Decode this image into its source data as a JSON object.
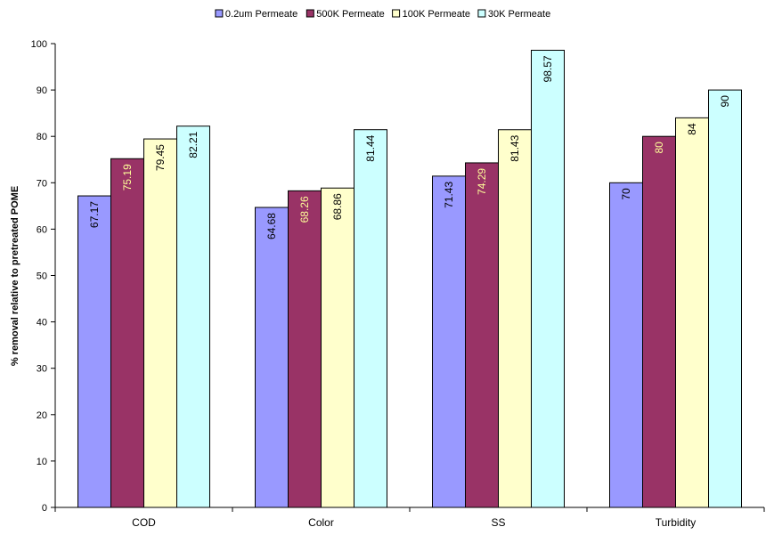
{
  "chart_data": {
    "type": "bar",
    "title": "",
    "xlabel": "",
    "ylabel": "% removal relative to pretreated POME",
    "categories": [
      "COD",
      "Color",
      "SS",
      "Turbidity"
    ],
    "ylim": [
      0,
      100
    ],
    "yticks": [
      0,
      10,
      20,
      30,
      40,
      50,
      60,
      70,
      80,
      90,
      100
    ],
    "grid": false,
    "legend_position": "top",
    "series": [
      {
        "name": "0.2um Permeate",
        "color": "#9999FF",
        "values": [
          67.17,
          64.68,
          71.43,
          70
        ],
        "labels": [
          "67.17",
          "64.68",
          "71.43",
          "70"
        ],
        "label_color": "#000000"
      },
      {
        "name": "500K Permeate",
        "color": "#993366",
        "values": [
          75.19,
          68.26,
          74.29,
          80
        ],
        "labels": [
          "75.19",
          "68.26",
          "74.29",
          "80"
        ],
        "label_color": "#FFFF99"
      },
      {
        "name": "100K Permeate",
        "color": "#FFFFCC",
        "values": [
          79.45,
          68.86,
          81.43,
          84
        ],
        "labels": [
          "79.45",
          "68.86",
          "81.43",
          "84"
        ],
        "label_color": "#000000"
      },
      {
        "name": "30K Permeate",
        "color": "#CCFFFF",
        "values": [
          82.21,
          81.44,
          98.57,
          90
        ],
        "labels": [
          "82.21",
          "81.44",
          "98.57",
          "90"
        ],
        "label_color": "#000000"
      }
    ]
  }
}
